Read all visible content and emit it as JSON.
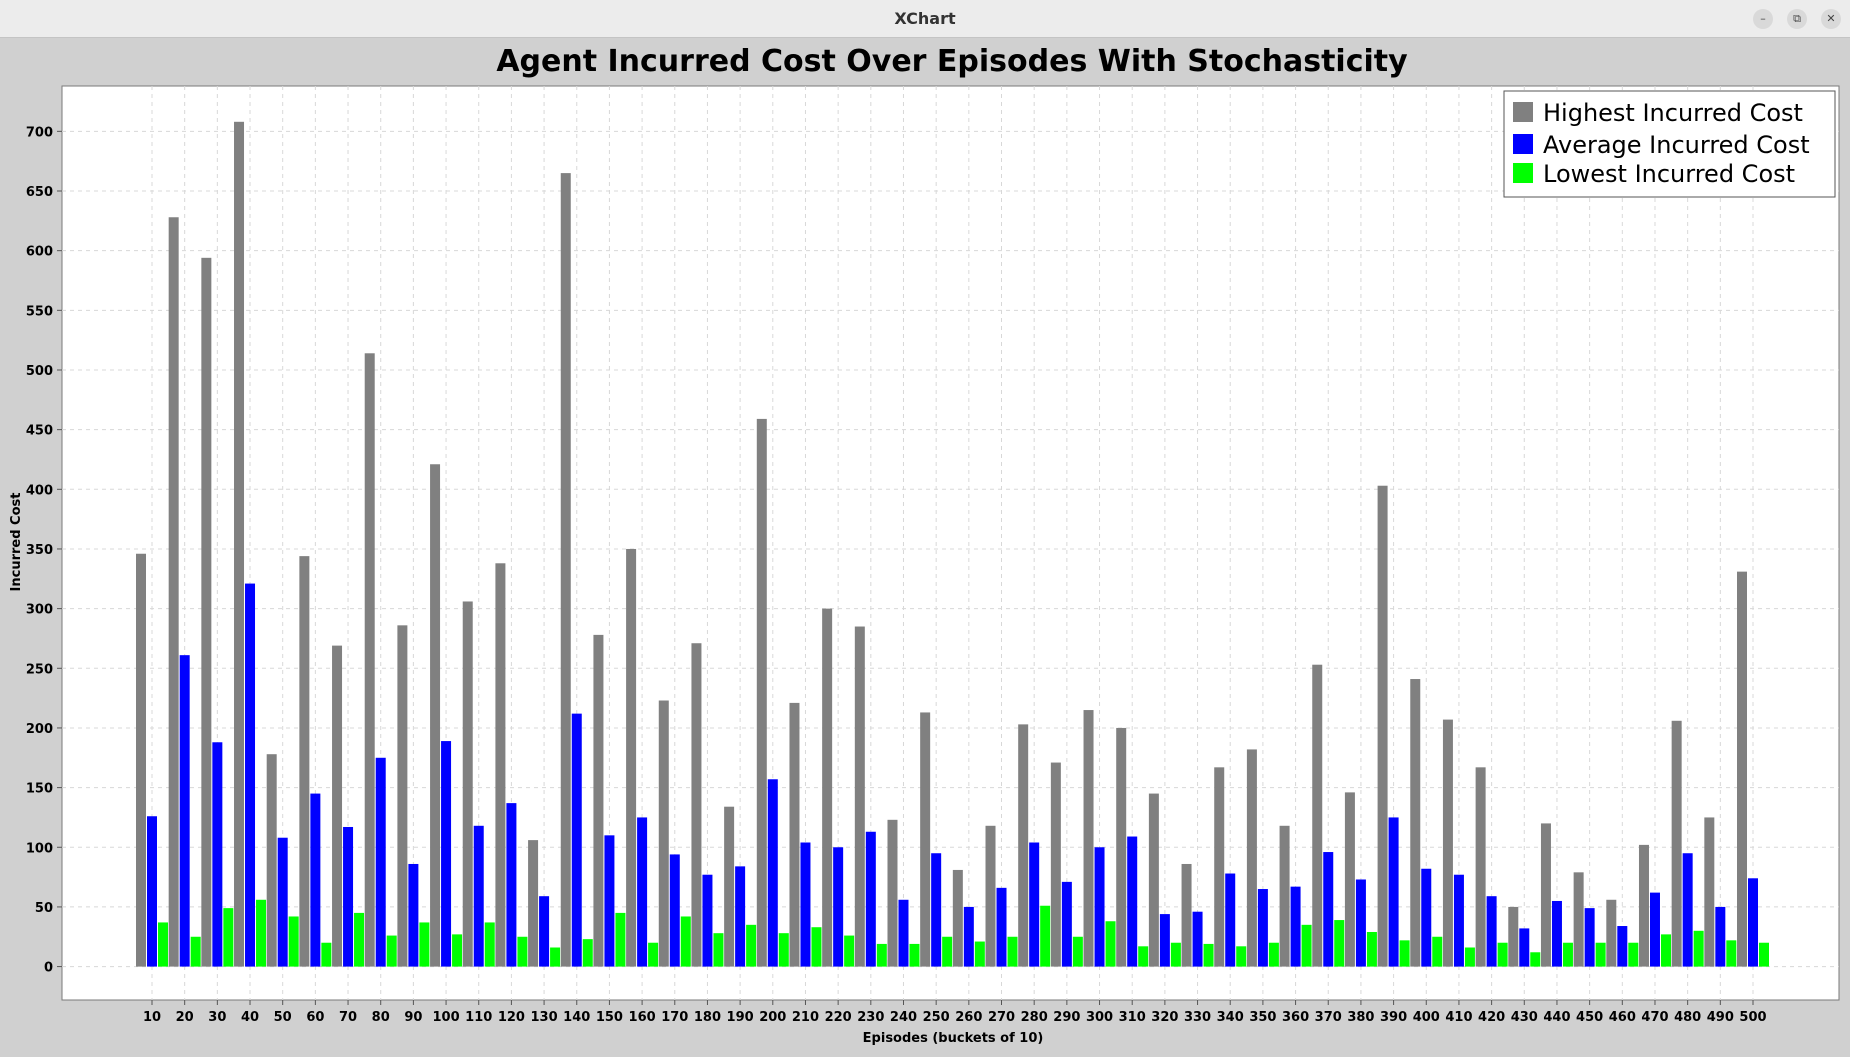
{
  "window": {
    "title": "XChart",
    "minimize_icon": "minimize-icon",
    "maximize_icon": "restore-icon",
    "close_icon": "close-icon"
  },
  "colors": {
    "background": "#d0d0d0",
    "plot_background": "#ffffff",
    "highest": "#808080",
    "average": "#0000ff",
    "lowest": "#00ff00"
  },
  "chart_data": {
    "type": "bar",
    "title": "Agent Incurred Cost Over Episodes With Stochasticity",
    "xlabel": "Episodes (buckets of 10)",
    "ylabel": "Incurred Cost",
    "ylim": [
      -28,
      738
    ],
    "yticks": [
      0,
      50,
      100,
      150,
      200,
      250,
      300,
      350,
      400,
      450,
      500,
      550,
      600,
      650,
      700
    ],
    "grid": true,
    "legend_position": "top-right",
    "categories": [
      "10",
      "20",
      "30",
      "40",
      "50",
      "60",
      "70",
      "80",
      "90",
      "100",
      "110",
      "120",
      "130",
      "140",
      "150",
      "160",
      "170",
      "180",
      "190",
      "200",
      "210",
      "220",
      "230",
      "240",
      "250",
      "260",
      "270",
      "280",
      "290",
      "300",
      "310",
      "320",
      "330",
      "340",
      "350",
      "360",
      "370",
      "380",
      "390",
      "400",
      "410",
      "420",
      "430",
      "440",
      "450",
      "460",
      "470",
      "480",
      "490",
      "500"
    ],
    "series": [
      {
        "name": "Highest Incurred Cost",
        "color": "#808080",
        "values": [
          346,
          628,
          594,
          708,
          178,
          344,
          269,
          514,
          286,
          421,
          306,
          338,
          106,
          665,
          278,
          350,
          223,
          271,
          134,
          459,
          221,
          300,
          285,
          123,
          213,
          81,
          118,
          203,
          171,
          215,
          200,
          145,
          86,
          167,
          182,
          118,
          253,
          146,
          403,
          241,
          207,
          167,
          50,
          120,
          79,
          56,
          102,
          206,
          125,
          331
        ]
      },
      {
        "name": "Average Incurred Cost",
        "color": "#0000ff",
        "values": [
          126,
          261,
          188,
          321,
          108,
          145,
          117,
          175,
          86,
          189,
          118,
          137,
          59,
          212,
          110,
          125,
          94,
          77,
          84,
          157,
          104,
          100,
          113,
          56,
          95,
          50,
          66,
          104,
          71,
          100,
          109,
          44,
          46,
          78,
          65,
          67,
          96,
          73,
          125,
          82,
          77,
          59,
          32,
          55,
          49,
          34,
          62,
          95,
          50,
          74
        ]
      },
      {
        "name": "Lowest Incurred Cost",
        "color": "#00ff00",
        "values": [
          37,
          25,
          49,
          56,
          42,
          20,
          45,
          26,
          37,
          27,
          37,
          25,
          16,
          23,
          45,
          20,
          42,
          28,
          35,
          28,
          33,
          26,
          19,
          19,
          25,
          21,
          25,
          51,
          25,
          38,
          17,
          20,
          19,
          17,
          20,
          35,
          39,
          29,
          22,
          25,
          16,
          20,
          12,
          20,
          20,
          20,
          27,
          30,
          22,
          20
        ]
      }
    ]
  }
}
